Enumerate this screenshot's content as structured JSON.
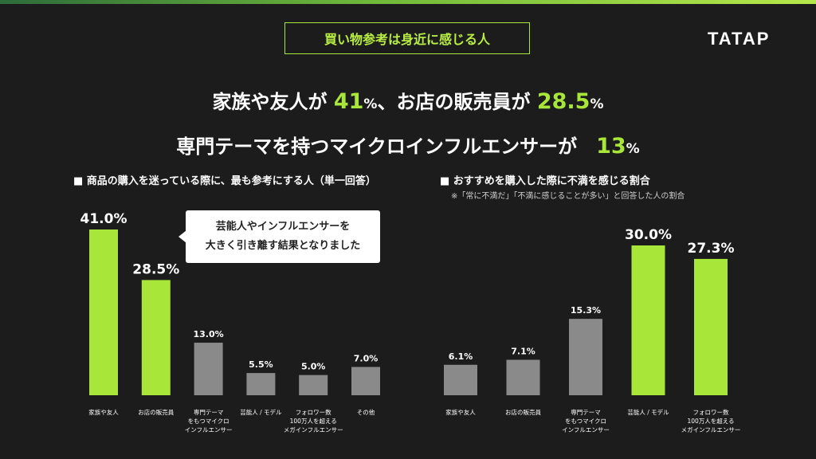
{
  "tag": "買い物参考は身近に感じる人",
  "logo": "TATAP",
  "headline1": {
    "a": "家族や友人が ",
    "n1": "41",
    "p1": "%",
    "b": "、お店の販売員が ",
    "n2": "28.5",
    "p2": "%"
  },
  "headline2": {
    "a": "専門テーマを持つマイクロインフルエンサーが　",
    "n": "13",
    "p": "%"
  },
  "callout": {
    "line1": "芸能人やインフルエンサーを",
    "line2": "大きく引き離す結果となりました"
  },
  "colors": {
    "accent": "#a8e63a",
    "gray": "#8a8a8a",
    "bg": "#1c1c1c"
  },
  "chart_data": [
    {
      "type": "bar",
      "title": "■ 商品の購入を迷っている際に、最も参考にする人（単一回答）",
      "categories": [
        [
          "家族や友人"
        ],
        [
          "お店の販売員"
        ],
        [
          "専門テーマ",
          "をもつマイクロ",
          "インフルエンサー"
        ],
        [
          "芸能人 / モデル"
        ],
        [
          "フォロワー数",
          "100万人を超える",
          "メガインフルエンサー"
        ],
        [
          "その他"
        ]
      ],
      "values": [
        41.0,
        28.5,
        13.0,
        5.5,
        5.0,
        7.0
      ],
      "labels": [
        "41.0%",
        "28.5%",
        "13.0%",
        "5.5%",
        "5.0%",
        "7.0%"
      ],
      "highlight": [
        true,
        true,
        false,
        false,
        false,
        false
      ],
      "ylim": [
        0,
        41
      ]
    },
    {
      "type": "bar",
      "title": "■ おすすめを購入した際に不満を感じる割合",
      "note": "※「常に不満だ」「不満に感じることが多い」と回答した人の割合",
      "categories": [
        [
          "家族や友人"
        ],
        [
          "お店の販売員"
        ],
        [
          "専門テーマ",
          "をもつマイクロ",
          "インフルエンサー"
        ],
        [
          "芸能人 / モデル"
        ],
        [
          "フォロワー数",
          "100万人を超える",
          "メガインフルエンサー"
        ]
      ],
      "values": [
        6.1,
        7.1,
        15.3,
        30.0,
        27.3
      ],
      "labels": [
        "6.1%",
        "7.1%",
        "15.3%",
        "30.0%",
        "27.3%"
      ],
      "highlight": [
        false,
        false,
        false,
        true,
        true
      ],
      "ylim": [
        0,
        30
      ]
    }
  ]
}
